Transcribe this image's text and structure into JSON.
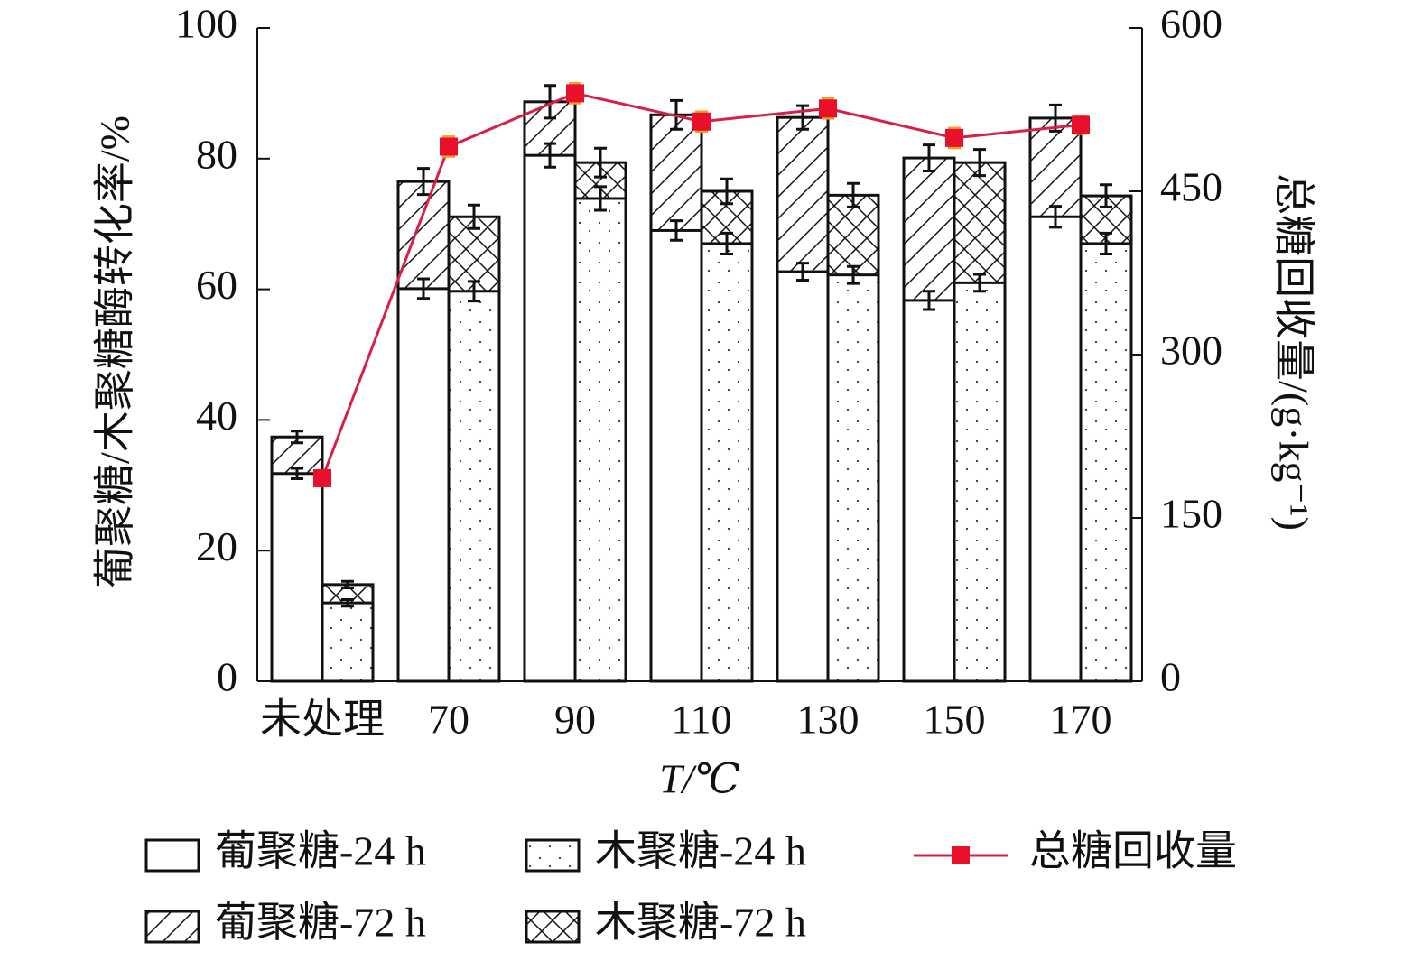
{
  "chart_data": {
    "type": "bar",
    "ylabel": "葡聚糖/木聚糖酶转化率/%",
    "y2label": "总糖回收量/(g·kg⁻¹)",
    "xlabel": "T/℃",
    "categories": [
      "未处理",
      "70",
      "90",
      "110",
      "130",
      "150",
      "170"
    ],
    "ylim": [
      0,
      100
    ],
    "yticks": [
      0,
      20,
      40,
      60,
      80,
      100
    ],
    "y2lim": [
      0,
      600
    ],
    "y2ticks": [
      0,
      150,
      300,
      450,
      600
    ],
    "series": [
      {
        "name": "葡聚糖-24 h",
        "color": "#111111",
        "pattern": "none",
        "values": [
          31.8,
          60.1,
          80.5,
          69.0,
          62.7,
          58.3,
          71.1
        ],
        "errors": [
          0.8,
          1.5,
          1.8,
          1.5,
          1.3,
          1.4,
          1.6
        ]
      },
      {
        "name": "木聚糖-24 h",
        "color": "#111111",
        "pattern": "dots",
        "values": [
          12.0,
          59.7,
          73.9,
          67.0,
          62.2,
          61.0,
          67.0
        ],
        "errors": [
          0.5,
          1.5,
          1.8,
          1.6,
          1.3,
          1.3,
          1.6
        ]
      },
      {
        "name": "总糖回收量",
        "color": "#d6204a",
        "type": "line",
        "axis": "y2",
        "values": [
          186.5,
          491,
          540,
          514,
          526,
          499,
          511
        ],
        "errors": [
          4,
          9,
          9,
          9,
          9,
          9,
          8
        ]
      },
      {
        "name": "葡聚糖-72 h",
        "color": "#111111",
        "pattern": "hatch",
        "values": [
          37.4,
          76.5,
          88.7,
          86.7,
          86.3,
          80.1,
          86.2
        ],
        "errors": [
          0.9,
          2.0,
          2.5,
          2.2,
          1.8,
          2.0,
          2.0
        ]
      },
      {
        "name": "木聚糖-72 h",
        "color": "#111111",
        "pattern": "cross",
        "values": [
          14.8,
          71.1,
          79.4,
          75.0,
          74.4,
          79.4,
          74.3
        ],
        "errors": [
          0.5,
          1.8,
          2.2,
          1.9,
          1.8,
          2.0,
          1.7
        ]
      }
    ]
  }
}
